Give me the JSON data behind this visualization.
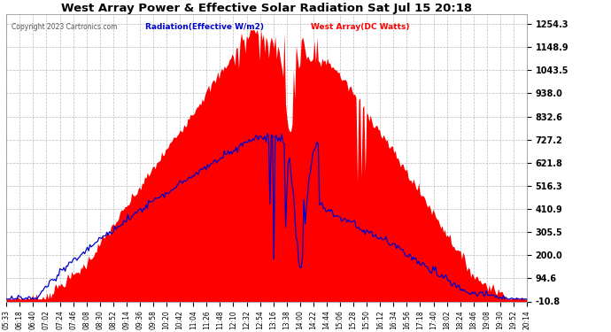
{
  "title": "West Array Power & Effective Solar Radiation Sat Jul 15 20:18",
  "copyright": "Copyright 2023 Cartronics.com",
  "legend_radiation": "Radiation(Effective W/m2)",
  "legend_west": "West Array(DC Watts)",
  "yticks": [
    1254.3,
    1148.9,
    1043.5,
    938.0,
    832.6,
    727.2,
    621.8,
    516.3,
    410.9,
    305.5,
    200.0,
    94.6,
    -10.8
  ],
  "ymin": -10.8,
  "ymax": 1300.0,
  "bg_color": "#ffffff",
  "plot_bg_color": "#ffffff",
  "grid_color": "#aaaaaa",
  "red_color": "#ff0000",
  "blue_color": "#0000cc",
  "title_color": "#000000",
  "ytick_color": "#000000",
  "xtick_color": "#000000",
  "xtick_labels": [
    "05:33",
    "06:18",
    "06:40",
    "07:02",
    "07:24",
    "07:46",
    "08:08",
    "08:30",
    "08:52",
    "09:14",
    "09:36",
    "09:58",
    "10:20",
    "10:42",
    "11:04",
    "11:26",
    "11:48",
    "12:10",
    "12:32",
    "12:54",
    "13:16",
    "13:38",
    "14:00",
    "14:22",
    "14:44",
    "15:06",
    "15:28",
    "15:50",
    "16:12",
    "16:34",
    "16:56",
    "17:18",
    "17:40",
    "18:02",
    "18:24",
    "18:46",
    "19:08",
    "19:30",
    "19:52",
    "20:14"
  ],
  "n_points": 400,
  "radiation_peak": 780,
  "west_peak": 1230
}
